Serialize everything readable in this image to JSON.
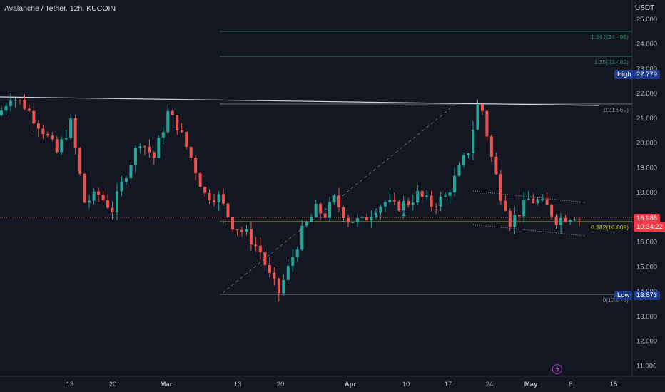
{
  "header": {
    "title": "Avalanche / Tether, 12h, KUCOIN",
    "currency": "USDT"
  },
  "badges": {
    "high_label": "High",
    "high_value": "22.779",
    "low_label": "Low",
    "low_value": "13.873",
    "last_price": "16.986",
    "countdown": "10:34:22"
  },
  "fib_labels": {
    "f1382": "1.382(24.496)",
    "f125": "1.25(23.482)",
    "f1": "1(21.560)",
    "f0382": "0.382(16.809)",
    "f0": "0(13.873)"
  },
  "colors": {
    "up": "#26a69a",
    "down": "#ef5350",
    "bg": "#131722",
    "badge": "#1e3a8a",
    "fib_green": "#2e7d5b",
    "fib_yellow": "#c0ca33"
  },
  "chart_data": {
    "type": "candlestick",
    "title": "Avalanche / Tether, 12h, KUCOIN",
    "y_unit": "USDT",
    "ylim": [
      10.6,
      25.5
    ],
    "y_ticks": [
      "11.000",
      "12.000",
      "13.000",
      "14.000",
      "15.000",
      "16.000",
      "17.000",
      "18.000",
      "19.000",
      "20.000",
      "21.000",
      "22.000",
      "23.000",
      "24.000",
      "25.000"
    ],
    "x_ticks": [
      "13",
      "20",
      "Mar",
      "13",
      "20",
      "Apr",
      "10",
      "17",
      "24",
      "May",
      "8",
      "15"
    ],
    "close_path": [
      [
        0,
        21.3
      ],
      [
        2,
        21.9
      ],
      [
        5,
        21.5
      ],
      [
        9,
        20.5
      ],
      [
        12,
        19.6
      ],
      [
        15,
        20.8
      ],
      [
        18,
        17.6
      ],
      [
        21,
        17.9
      ],
      [
        24,
        17.3
      ],
      [
        27,
        18.8
      ],
      [
        30,
        20.1
      ],
      [
        33,
        19.4
      ],
      [
        36,
        21.2
      ],
      [
        38,
        20.7
      ],
      [
        41,
        19.4
      ],
      [
        44,
        17.9
      ],
      [
        47,
        17.8
      ],
      [
        50,
        16.7
      ],
      [
        53,
        16.3
      ],
      [
        56,
        15.6
      ],
      [
        58,
        14.6
      ],
      [
        60,
        13.95
      ],
      [
        62,
        14.9
      ],
      [
        65,
        16.4
      ],
      [
        68,
        17.3
      ],
      [
        70,
        17.1
      ],
      [
        72,
        17.7
      ],
      [
        75,
        16.9
      ],
      [
        78,
        16.8
      ],
      [
        81,
        17.4
      ],
      [
        83,
        17.6
      ],
      [
        85,
        17.4
      ],
      [
        88,
        17.6
      ],
      [
        90,
        17.9
      ],
      [
        93,
        17.5
      ],
      [
        96,
        17.8
      ],
      [
        99,
        18.9
      ],
      [
        101,
        19.7
      ],
      [
        103,
        21.5
      ],
      [
        104,
        21.3
      ],
      [
        106,
        19.4
      ],
      [
        108,
        17.9
      ],
      [
        109,
        17.5
      ],
      [
        110,
        16.8
      ],
      [
        112,
        17.2
      ],
      [
        114,
        17.7
      ],
      [
        116,
        17.6
      ],
      [
        118,
        17.4
      ],
      [
        120,
        16.9
      ],
      [
        122,
        17.0
      ],
      [
        124,
        17.1
      ],
      [
        125,
        16.95
      ]
    ],
    "fib_levels": [
      {
        "ratio": "0",
        "price": 13.873
      },
      {
        "ratio": "0.382",
        "price": 16.809
      },
      {
        "ratio": "1",
        "price": 21.56
      },
      {
        "ratio": "1.25",
        "price": 23.482
      },
      {
        "ratio": "1.382",
        "price": 24.496
      }
    ],
    "annotations": {
      "high": 22.779,
      "low": 13.873,
      "last": 16.986
    },
    "grid": false
  }
}
